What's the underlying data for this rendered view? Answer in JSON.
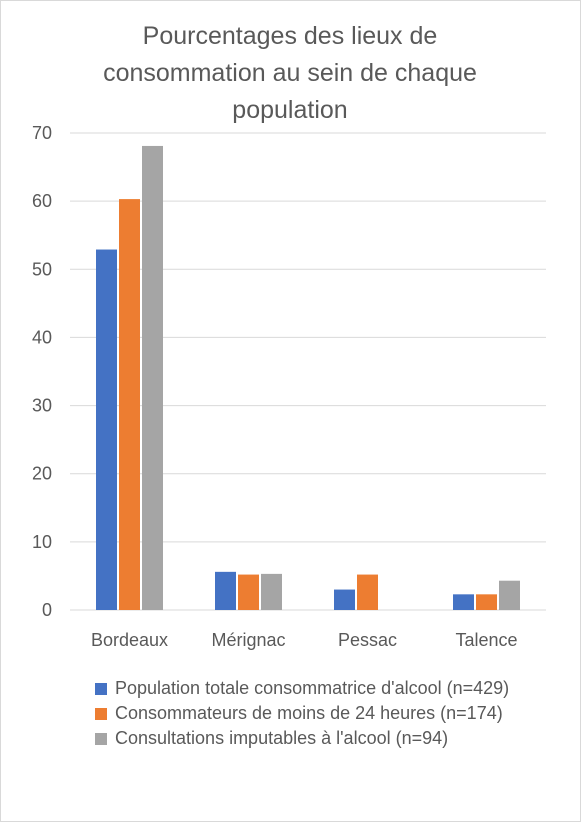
{
  "chart_data": {
    "type": "bar",
    "title": "Pourcentages des lieux de consommation au sein de chaque population",
    "xlabel": "",
    "ylabel": "",
    "categories": [
      "Bordeaux",
      "Mérignac",
      "Pessac",
      "Talence"
    ],
    "series": [
      {
        "name": "Population totale consommatrice d'alcool (n=429)",
        "color": "#4472c4",
        "values": [
          52.9,
          5.6,
          3.0,
          2.3
        ]
      },
      {
        "name": "Consommateurs de moins de 24 heures (n=174)",
        "color": "#ed7d31",
        "values": [
          60.3,
          5.2,
          5.2,
          2.3
        ]
      },
      {
        "name": "Consultations imputables à l'alcool (n=94)",
        "color": "#a5a5a5",
        "values": [
          68.1,
          5.3,
          0,
          4.3
        ]
      }
    ],
    "ylim": [
      0,
      70
    ],
    "yticks": [
      0,
      10,
      20,
      30,
      40,
      50,
      60,
      70
    ],
    "grid": true,
    "legend_position": "bottom"
  }
}
